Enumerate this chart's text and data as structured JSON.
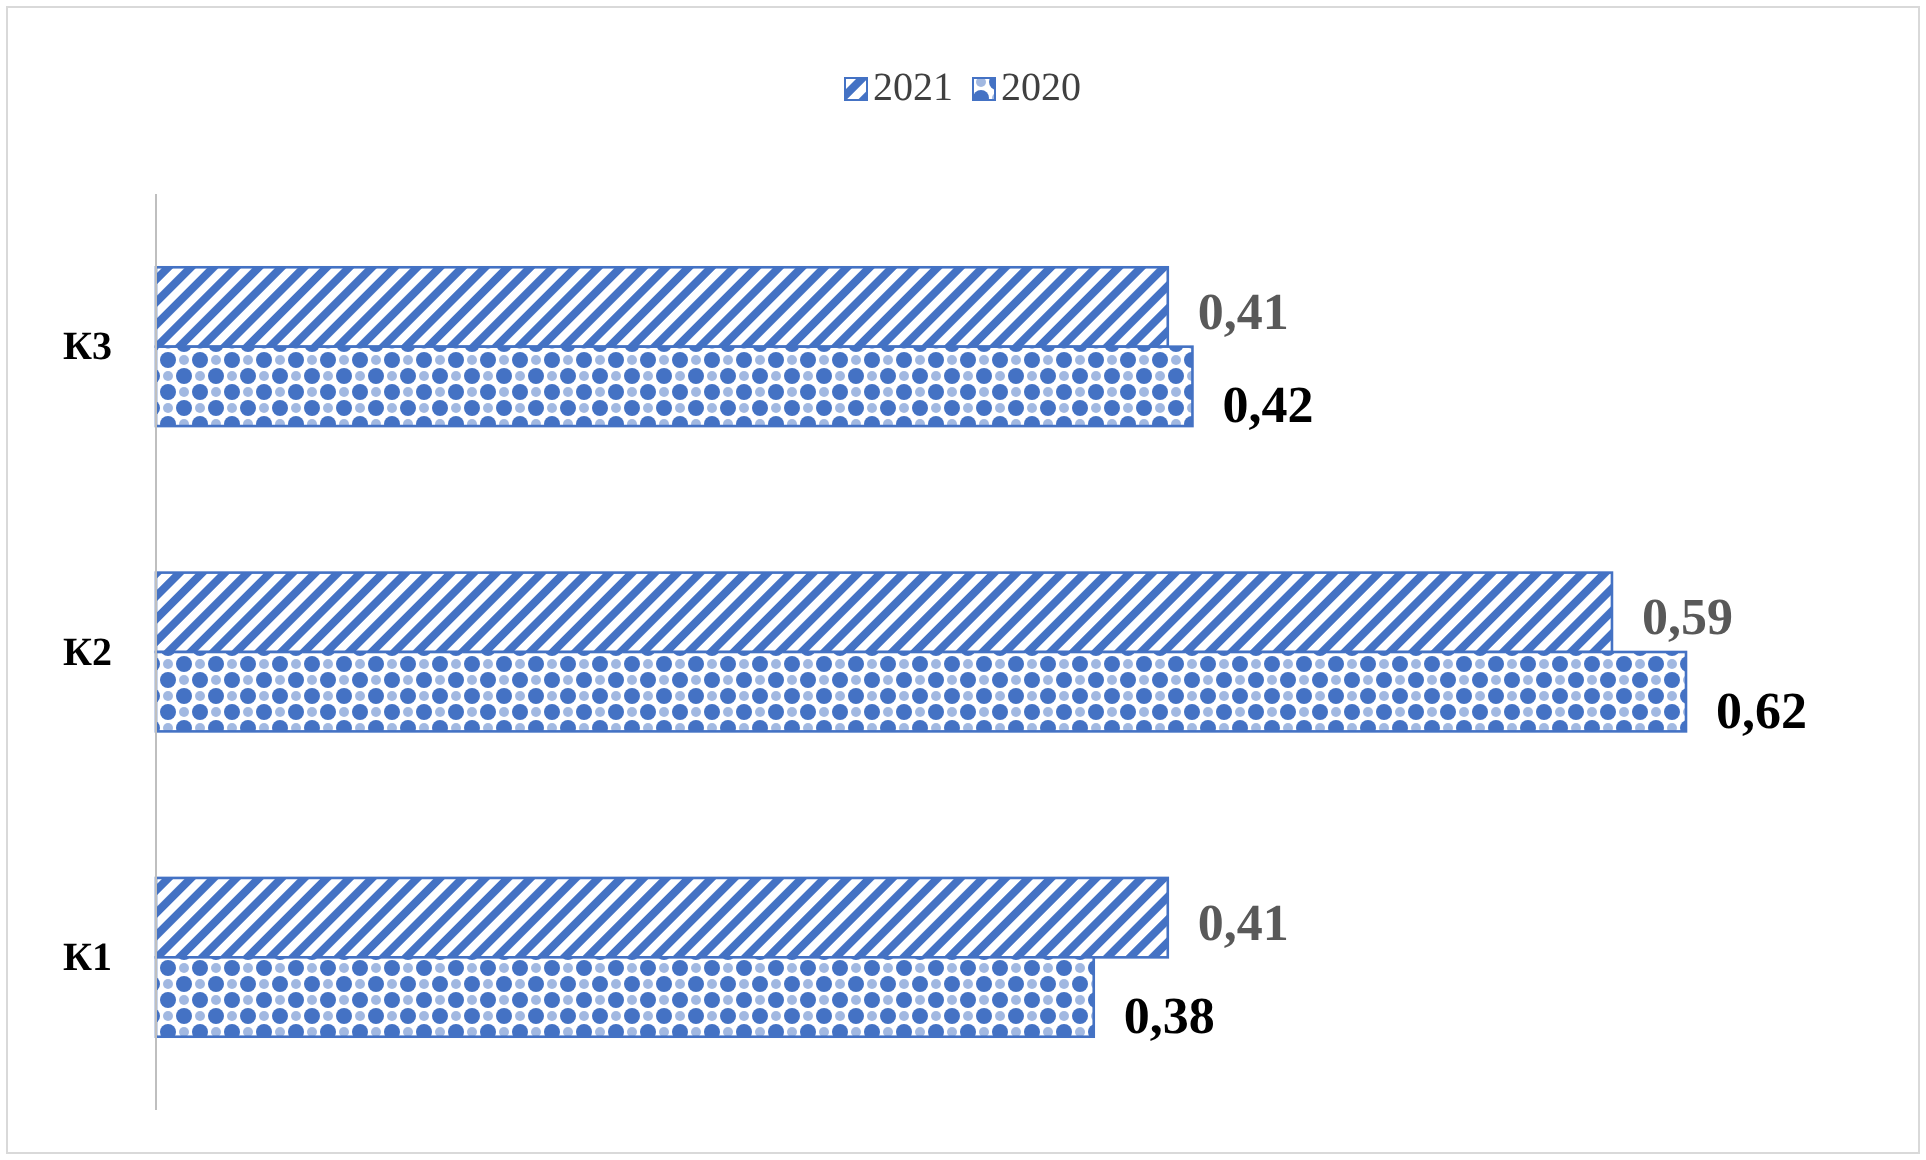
{
  "chart_data": {
    "type": "bar",
    "orientation": "horizontal",
    "categories": [
      "К3",
      "К2",
      "К1"
    ],
    "legend": "top",
    "series": [
      {
        "name": "2021",
        "color": "#4472c4",
        "values": [
          0.41,
          0.59,
          0.41
        ],
        "value_labels": [
          "0,41",
          "0,59",
          "0,41"
        ]
      },
      {
        "name": "2020",
        "color": "#4472c4",
        "values": [
          0.42,
          0.62,
          0.38
        ],
        "value_labels": [
          "0,42",
          "0,62",
          "0,38"
        ]
      }
    ]
  }
}
